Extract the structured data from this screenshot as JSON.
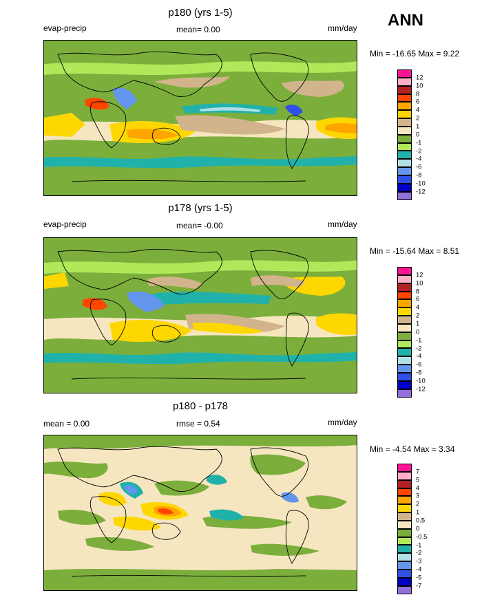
{
  "season": "ANN",
  "panels": [
    {
      "title": "p180 (yrs 1-5)",
      "left_label": "evap-precip",
      "center_label": "mean=  0.00",
      "units": "mm/day",
      "minmax": "Min = -16.65 Max =   9.22",
      "levels": [
        "12",
        "10",
        "8",
        "6",
        "4",
        "2",
        "1",
        "0",
        "-1",
        "-2",
        "-4",
        "-6",
        "-8",
        "-10",
        "-12"
      ]
    },
    {
      "title": "p178 (yrs 1-5)",
      "left_label": "evap-precip",
      "center_label": "mean=  -0.00",
      "units": "mm/day",
      "minmax": "Min = -15.64 Max =   8.51",
      "levels": [
        "12",
        "10",
        "8",
        "6",
        "4",
        "2",
        "1",
        "0",
        "-1",
        "-2",
        "-4",
        "-6",
        "-8",
        "-10",
        "-12"
      ]
    },
    {
      "title": "p180 - p178",
      "left_label": "mean =   0.00",
      "center_label": "rmse =   0.54",
      "units": "mm/day",
      "minmax": "Min =  -4.54 Max =   3.34",
      "levels": [
        "7",
        "5",
        "4",
        "3",
        "2",
        "1",
        "0.5",
        "0",
        "-0.5",
        "-1",
        "-2",
        "-3",
        "-4",
        "-5",
        "-7"
      ]
    }
  ],
  "colorbar_colors": [
    "#ff1493",
    "#ffb0c8",
    "#b22222",
    "#ff4500",
    "#ffa500",
    "#ffd700",
    "#d2b48c",
    "#f5e6c0",
    "#7cae3c",
    "#b0e85a",
    "#20b2aa",
    "#b0e0e6",
    "#6495ed",
    "#3050e8",
    "#0000c8",
    "#9370db"
  ]
}
